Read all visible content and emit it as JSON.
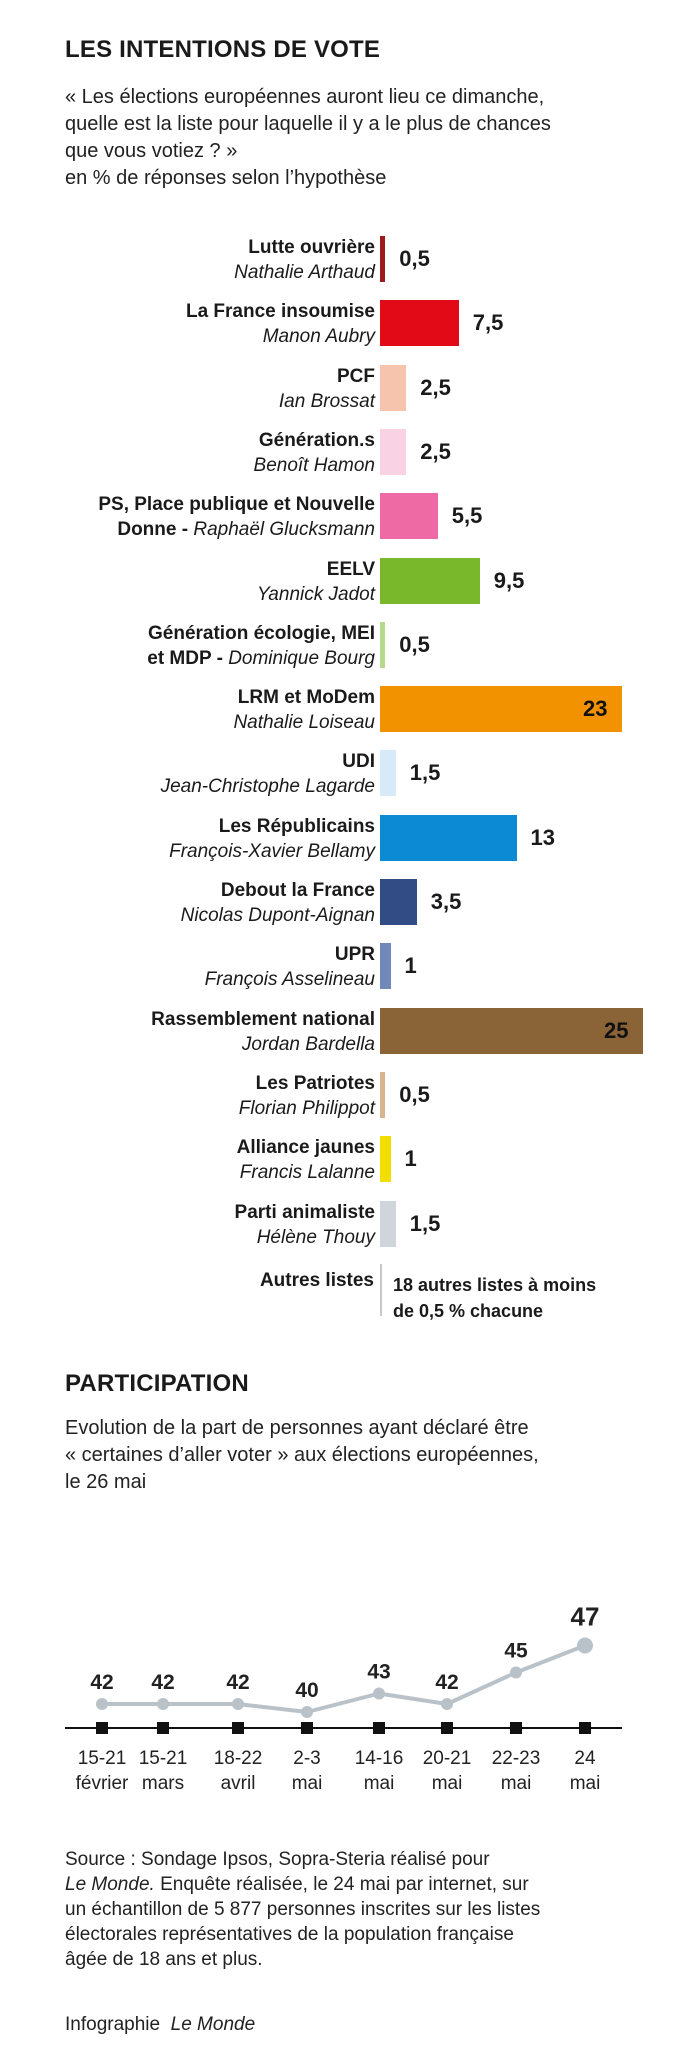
{
  "section1": {
    "title": "LES INTENTIONS DE VOTE",
    "question_line1": "« Les élections européennes auront lieu ce dimanche,",
    "question_line2": "quelle est la liste pour laquelle il y a le plus de chances",
    "question_line3": "que vous votiez ? »",
    "subtitle": "en % de réponses selon l’hypothèse"
  },
  "chart_data": [
    {
      "type": "bar",
      "orientation": "horizontal",
      "unit": "%",
      "bars": [
        {
          "list": "Lutte ouvrière",
          "candidate": "Nathalie Arthaud",
          "value": 0.5,
          "label": "0,5",
          "color": "#9b1b1f"
        },
        {
          "list": "La France insoumise",
          "candidate": "Manon Aubry",
          "value": 7.5,
          "label": "7,5",
          "color": "#e30a17"
        },
        {
          "list": "PCF",
          "candidate": "Ian Brossat",
          "value": 2.5,
          "label": "2,5",
          "color": "#f6c4ad"
        },
        {
          "list": "Génération.s",
          "candidate": "Benoît Hamon",
          "value": 2.5,
          "label": "2,5",
          "color": "#f9d3e4"
        },
        {
          "list": "PS, Place publique et Nouvelle",
          "list2": "Donne -",
          "candidate": "Raphaël Glucksmann",
          "value": 5.5,
          "label": "5,5",
          "color": "#ee6aa5"
        },
        {
          "list": "EELV",
          "candidate": "Yannick Jadot",
          "value": 9.5,
          "label": "9,5",
          "color": "#78b82a"
        },
        {
          "list": "Génération écologie, MEI",
          "list2": "et MDP -",
          "candidate": "Dominique Bourg",
          "value": 0.5,
          "label": "0,5",
          "color": "#b7d98c"
        },
        {
          "list": "LRM et MoDem",
          "candidate": "Nathalie Loiseau",
          "value": 23,
          "label": "23",
          "color": "#f39200"
        },
        {
          "list": "UDI",
          "candidate": "Jean-Christophe Lagarde",
          "value": 1.5,
          "label": "1,5",
          "color": "#d6eaf8"
        },
        {
          "list": "Les Républicains",
          "candidate": "François-Xavier Bellamy",
          "value": 13,
          "label": "13",
          "color": "#0c8bd4"
        },
        {
          "list": "Debout la France",
          "candidate": "Nicolas Dupont-Aignan",
          "value": 3.5,
          "label": "3,5",
          "color": "#324d86"
        },
        {
          "list": "UPR",
          "candidate": "François Asselineau",
          "value": 1,
          "label": "1",
          "color": "#7189b8"
        },
        {
          "list": "Rassemblement national",
          "candidate": "Jordan Bardella",
          "value": 25,
          "label": "25",
          "color": "#8a6337"
        },
        {
          "list": "Les Patriotes",
          "candidate": "Florian Philippot",
          "value": 0.5,
          "label": "0,5",
          "color": "#d8b58e"
        },
        {
          "list": "Alliance jaunes",
          "candidate": "Francis Lalanne",
          "value": 1,
          "label": "1",
          "color": "#f2de00"
        },
        {
          "list": "Parti animaliste",
          "candidate": "Hélène Thouy",
          "value": 1.5,
          "label": "1,5",
          "color": "#cfd5db"
        }
      ],
      "others": {
        "list": "Autres listes",
        "note_line1": "18 autres listes à moins",
        "note_line2": "de 0,5 % chacune"
      }
    },
    {
      "type": "line",
      "title": "PARTICIPATION",
      "description_line1": "Evolution de la part de personnes ayant déclaré être",
      "description_line2": "« certaines d’aller voter » aux élections européennes,",
      "description_line3": "le 26 mai",
      "x": [
        {
          "l1": "15-21",
          "l2": "février"
        },
        {
          "l1": "15-21",
          "l2": "mars"
        },
        {
          "l1": "18-22",
          "l2": "avril"
        },
        {
          "l1": "2-3",
          "l2": "mai"
        },
        {
          "l1": "14-16",
          "l2": "mai"
        },
        {
          "l1": "20-21",
          "l2": "mai"
        },
        {
          "l1": "22-23",
          "l2": "mai"
        },
        {
          "l1": "24",
          "l2": "mai"
        }
      ],
      "values": [
        42,
        42,
        42,
        40,
        43,
        42,
        45,
        47
      ],
      "line_color": "#b9c2c9"
    }
  ],
  "footer": {
    "source_prefix": "Source : Sondage Ipsos, Sopra-Steria réalisé pour",
    "source_pub": "Le Monde.",
    "source_rest": " Enquête réalisée, le 24 mai par internet, sur",
    "source_line3": "un échantillon de  5 877 personnes inscrites sur les listes",
    "source_line4": "électorales représentatives de la population française",
    "source_line5": "âgée de 18 ans et plus.",
    "credit_prefix": "Infographie",
    "credit_pub": "Le Monde"
  }
}
